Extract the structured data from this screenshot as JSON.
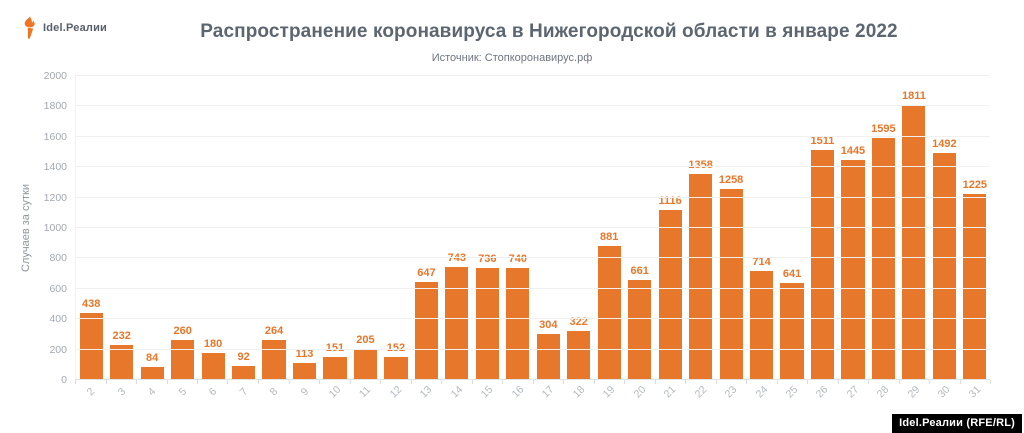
{
  "header": {
    "brand": "Idel.Реалии",
    "title": "Распространение коронавируса в Нижегородской области в январе 2022",
    "subtitle": "Источник: Стопкоронавирус.рф"
  },
  "footer": {
    "badge": "Idel.Реалии (RFE/RL)"
  },
  "colors": {
    "bar": "#e7772a",
    "title": "#5b6671",
    "subtitle": "#6e7680",
    "axis_text": "#a3a9b0",
    "grid": "#f0f0f0",
    "background": "#ffffff",
    "badge_bg": "#000000",
    "badge_text": "#ffffff"
  },
  "chart_data": {
    "type": "bar",
    "title": "Распространение коронавируса в Нижегородской области в январе 2022",
    "subtitle": "Источник: Стопкоронавирус.рф",
    "xlabel": "",
    "ylabel": "Случаев за сутки",
    "categories": [
      "2",
      "3",
      "4",
      "5",
      "6",
      "7",
      "8",
      "9",
      "10",
      "11",
      "12",
      "13",
      "14",
      "15",
      "16",
      "17",
      "18",
      "19",
      "20",
      "21",
      "22",
      "23",
      "24",
      "25",
      "26",
      "27",
      "28",
      "29",
      "30",
      "31"
    ],
    "values": [
      438,
      232,
      84,
      260,
      180,
      92,
      264,
      113,
      151,
      205,
      152,
      647,
      743,
      736,
      740,
      304,
      322,
      881,
      661,
      1116,
      1358,
      1258,
      714,
      641,
      1511,
      1445,
      1595,
      1811,
      1492,
      1225
    ],
    "ylim": [
      0,
      2000
    ],
    "ytick_step": 200,
    "grid": true,
    "legend": false,
    "value_labels": true,
    "xtick_rotation": -45
  }
}
